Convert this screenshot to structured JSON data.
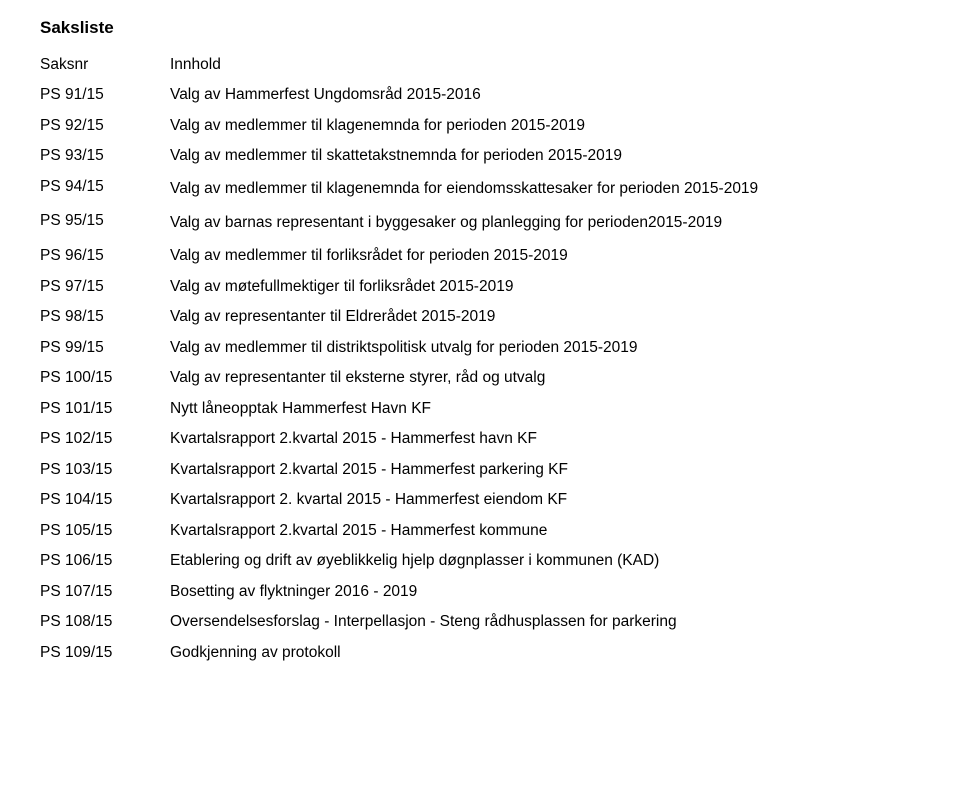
{
  "title": "Saksliste",
  "header": {
    "id": "Saksnr",
    "content": "Innhold"
  },
  "rows": [
    {
      "id": "PS 91/15",
      "content": "Valg av Hammerfest Ungdomsråd 2015-2016"
    },
    {
      "id": "PS 92/15",
      "content": "Valg av medlemmer til klagenemnda for perioden 2015-2019"
    },
    {
      "id": "PS 93/15",
      "content": "Valg av medlemmer til skattetakstnemnda for perioden 2015-2019"
    },
    {
      "id": "PS 94/15",
      "content": "Valg av medlemmer til klagenemnda for eiendomsskattesaker for perioden 2015-2019"
    },
    {
      "id": "PS 95/15",
      "content": "Valg av barnas representant i byggesaker og planlegging for perioden2015-2019"
    },
    {
      "id": "PS 96/15",
      "content": "Valg av medlemmer til forliksrådet for perioden 2015-2019"
    },
    {
      "id": "PS 97/15",
      "content": "Valg av møtefullmektiger til forliksrådet 2015-2019"
    },
    {
      "id": "PS 98/15",
      "content": "Valg av representanter til Eldrerådet 2015-2019"
    },
    {
      "id": "PS 99/15",
      "content": "Valg av medlemmer til distriktspolitisk utvalg for perioden 2015-2019"
    },
    {
      "id": "PS 100/15",
      "content": "Valg av representanter til eksterne styrer, råd og utvalg"
    },
    {
      "id": "PS 101/15",
      "content": "Nytt låneopptak Hammerfest Havn KF"
    },
    {
      "id": "PS 102/15",
      "content": "Kvartalsrapport 2.kvartal 2015 - Hammerfest havn KF"
    },
    {
      "id": "PS 103/15",
      "content": "Kvartalsrapport 2.kvartal 2015 - Hammerfest parkering KF"
    },
    {
      "id": "PS 104/15",
      "content": "Kvartalsrapport 2. kvartal 2015 - Hammerfest eiendom KF"
    },
    {
      "id": "PS 105/15",
      "content": "Kvartalsrapport 2.kvartal 2015 - Hammerfest kommune"
    },
    {
      "id": "PS 106/15",
      "content": "Etablering og drift av øyeblikkelig hjelp døgnplasser i kommunen (KAD)"
    },
    {
      "id": "PS 107/15",
      "content": "Bosetting av flyktninger 2016 - 2019"
    },
    {
      "id": "PS 108/15",
      "content": "Oversendelsesforslag - Interpellasjon - Steng rådhusplassen for parkering"
    },
    {
      "id": "PS 109/15",
      "content": "Godkjenning av protokoll"
    }
  ]
}
